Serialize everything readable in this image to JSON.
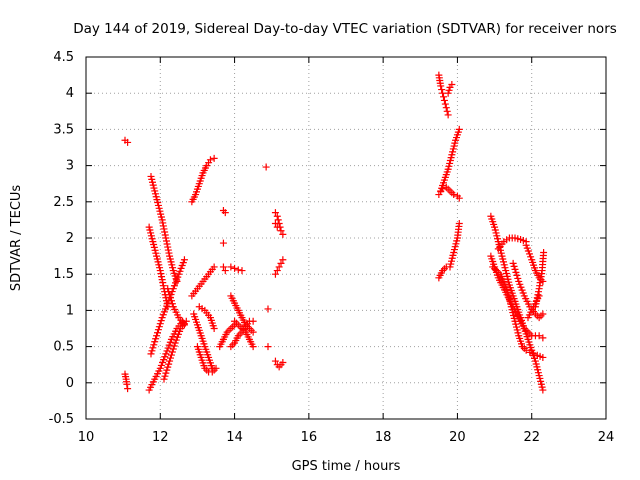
{
  "chart_data": {
    "type": "scatter",
    "title": "Day 144 of 2019, Sidereal Day-to-day VTEC variation (SDTVAR) for receiver nors",
    "xlabel": "GPS time / hours",
    "ylabel": "SDTVAR / TECUs",
    "xlim": [
      10,
      24
    ],
    "ylim": [
      -0.5,
      4.5
    ],
    "xticks": [
      10,
      12,
      14,
      16,
      18,
      20,
      22,
      24
    ],
    "yticks": [
      -0.5,
      0,
      0.5,
      1,
      1.5,
      2,
      2.5,
      3,
      3.5,
      4,
      4.5
    ],
    "grid": true,
    "marker": "+",
    "colors": {
      "series": "#ff0000",
      "grid": "#a0a0a0",
      "axis": "#000000"
    },
    "series": [
      {
        "name": "SDTVAR",
        "traces": [
          {
            "x": [
              11.05,
              11.12
            ],
            "y": [
              3.35,
              3.32
            ]
          },
          {
            "x": [
              11.05,
              11.08,
              11.1,
              11.12
            ],
            "y": [
              0.12,
              0.05,
              -0.02,
              -0.08
            ]
          },
          {
            "x": [
              11.75,
              11.85,
              11.95,
              12.05,
              12.15,
              12.25,
              12.35,
              12.45
            ],
            "y": [
              2.85,
              2.65,
              2.45,
              2.25,
              2.0,
              1.75,
              1.55,
              1.4
            ]
          },
          {
            "x": [
              11.7,
              11.8,
              11.9,
              12.0,
              12.1,
              12.2
            ],
            "y": [
              2.15,
              1.95,
              1.75,
              1.55,
              1.3,
              1.05
            ]
          },
          {
            "x": [
              11.75,
              11.9,
              12.05,
              12.2,
              12.35,
              12.5,
              12.65
            ],
            "y": [
              0.4,
              0.65,
              0.9,
              1.1,
              1.3,
              1.5,
              1.7
            ]
          },
          {
            "x": [
              11.7,
              11.85,
              12.0,
              12.15,
              12.3,
              12.45,
              12.6
            ],
            "y": [
              -0.1,
              0.05,
              0.2,
              0.4,
              0.6,
              0.75,
              0.85
            ]
          },
          {
            "x": [
              12.1,
              12.25,
              12.4,
              12.55,
              12.7
            ],
            "y": [
              0.05,
              0.3,
              0.55,
              0.75,
              0.85
            ]
          },
          {
            "x": [
              12.2,
              12.35,
              12.5,
              12.65
            ],
            "y": [
              1.3,
              1.05,
              0.9,
              0.8
            ]
          },
          {
            "x": [
              12.85,
              12.95,
              13.05,
              13.15,
              13.25,
              13.35,
              13.45
            ],
            "y": [
              2.5,
              2.6,
              2.75,
              2.9,
              3.0,
              3.08,
              3.1
            ]
          },
          {
            "x": [
              12.85,
              13.0,
              13.15,
              13.3,
              13.45
            ],
            "y": [
              1.2,
              1.3,
              1.4,
              1.5,
              1.6
            ]
          },
          {
            "x": [
              12.9,
              13.0,
              13.1,
              13.2,
              13.3,
              13.4
            ],
            "y": [
              0.95,
              0.8,
              0.65,
              0.5,
              0.35,
              0.2
            ]
          },
          {
            "x": [
              13.0,
              13.1,
              13.2,
              13.3,
              13.4,
              13.5
            ],
            "y": [
              0.5,
              0.35,
              0.2,
              0.15,
              0.15,
              0.2
            ]
          },
          {
            "x": [
              13.05,
              13.2,
              13.35,
              13.45
            ],
            "y": [
              1.05,
              1.0,
              0.9,
              0.75
            ]
          },
          {
            "x": [
              13.7,
              13.75
            ],
            "y": [
              2.38,
              2.35
            ]
          },
          {
            "x": [
              13.7
            ],
            "y": [
              1.93
            ]
          },
          {
            "x": [
              13.7,
              13.75
            ],
            "y": [
              1.6,
              1.55
            ]
          },
          {
            "x": [
              13.6,
              13.7,
              13.8,
              13.9,
              14.0
            ],
            "y": [
              0.5,
              0.6,
              0.7,
              0.75,
              0.8
            ]
          },
          {
            "x": [
              13.9,
              14.0,
              14.1,
              14.2
            ],
            "y": [
              1.6,
              1.58,
              1.56,
              1.55
            ]
          },
          {
            "x": [
              13.9,
              14.0,
              14.1,
              14.2,
              14.3,
              14.4,
              14.5
            ],
            "y": [
              1.2,
              1.1,
              1.0,
              0.9,
              0.8,
              0.75,
              0.7
            ]
          },
          {
            "x": [
              13.9,
              14.0,
              14.1,
              14.2,
              14.3,
              14.4,
              14.5
            ],
            "y": [
              0.5,
              0.55,
              0.65,
              0.7,
              0.78,
              0.85,
              0.85
            ]
          },
          {
            "x": [
              14.0,
              14.1,
              14.2,
              14.3,
              14.4,
              14.5
            ],
            "y": [
              0.85,
              0.8,
              0.75,
              0.7,
              0.6,
              0.5
            ]
          },
          {
            "x": [
              14.85
            ],
            "y": [
              2.98
            ]
          },
          {
            "x": [
              14.9
            ],
            "y": [
              1.02
            ]
          },
          {
            "x": [
              14.9
            ],
            "y": [
              0.5
            ]
          },
          {
            "x": [
              15.1,
              15.15,
              15.2,
              15.25,
              15.3
            ],
            "y": [
              2.35,
              2.3,
              2.2,
              2.1,
              2.05
            ]
          },
          {
            "x": [
              15.1,
              15.15
            ],
            "y": [
              2.2,
              2.15
            ]
          },
          {
            "x": [
              15.1,
              15.15,
              15.2,
              15.25,
              15.3
            ],
            "y": [
              1.5,
              1.55,
              1.6,
              1.65,
              1.7
            ]
          },
          {
            "x": [
              15.1,
              15.15,
              15.2,
              15.25,
              15.3
            ],
            "y": [
              0.3,
              0.25,
              0.22,
              0.25,
              0.28
            ]
          },
          {
            "x": [
              19.5,
              19.55,
              19.6,
              19.65,
              19.7,
              19.75
            ],
            "y": [
              4.25,
              4.1,
              4.0,
              3.9,
              3.8,
              3.7
            ]
          },
          {
            "x": [
              19.75,
              19.8,
              19.85
            ],
            "y": [
              4.0,
              4.08,
              4.12
            ]
          },
          {
            "x": [
              19.55,
              19.65,
              19.75,
              19.85,
              19.95,
              20.05
            ],
            "y": [
              2.65,
              2.8,
              2.95,
              3.15,
              3.35,
              3.5
            ]
          },
          {
            "x": [
              19.5,
              19.6,
              19.7,
              19.8,
              19.9,
              20.0,
              20.05
            ],
            "y": [
              2.6,
              2.68,
              2.7,
              2.65,
              2.6,
              2.58,
              2.55
            ]
          },
          {
            "x": [
              19.5,
              19.6,
              19.7,
              19.8,
              19.9,
              20.0,
              20.05
            ],
            "y": [
              1.45,
              1.55,
              1.6,
              1.6,
              1.8,
              2.0,
              2.2
            ]
          },
          {
            "x": [
              20.9,
              21.0,
              21.1,
              21.2,
              21.3,
              21.4,
              21.5,
              21.6,
              21.7,
              21.8,
              21.9,
              22.0,
              22.1,
              22.2,
              22.3
            ],
            "y": [
              2.3,
              2.15,
              1.95,
              1.75,
              1.55,
              1.35,
              1.2,
              1.05,
              0.9,
              0.75,
              0.6,
              0.45,
              0.3,
              0.1,
              -0.1
            ]
          },
          {
            "x": [
              20.9,
              21.0,
              21.1,
              21.2,
              21.3,
              21.4,
              21.5,
              21.6,
              21.7,
              21.8,
              21.9,
              22.0,
              22.1,
              22.2,
              22.3
            ],
            "y": [
              1.75,
              1.6,
              1.45,
              1.35,
              1.25,
              1.15,
              1.05,
              0.95,
              0.85,
              0.75,
              0.7,
              0.65,
              0.65,
              0.65,
              0.62
            ]
          },
          {
            "x": [
              20.95,
              21.05,
              21.15,
              21.25,
              21.35,
              21.45,
              21.55,
              21.65,
              21.75,
              21.85,
              21.95,
              22.05,
              22.15,
              22.3
            ],
            "y": [
              1.6,
              1.55,
              1.5,
              1.4,
              1.25,
              1.05,
              0.85,
              0.65,
              0.5,
              0.45,
              0.42,
              0.4,
              0.38,
              0.35
            ]
          },
          {
            "x": [
              21.1,
              21.25,
              21.4,
              21.55,
              21.7,
              21.85
            ],
            "y": [
              1.85,
              1.95,
              2.0,
              2.0,
              1.98,
              1.95
            ]
          },
          {
            "x": [
              21.5,
              21.65,
              21.8,
              21.95,
              22.1,
              22.2,
              22.3
            ],
            "y": [
              1.65,
              1.4,
              1.2,
              1.05,
              0.95,
              0.9,
              0.95
            ]
          },
          {
            "x": [
              21.85,
              22.0,
              22.1,
              22.2,
              22.3
            ],
            "y": [
              1.9,
              1.7,
              1.55,
              1.45,
              1.4
            ]
          },
          {
            "x": [
              22.1,
              22.2,
              22.28,
              22.32
            ],
            "y": [
              1.05,
              1.3,
              1.55,
              1.8
            ]
          },
          {
            "x": [
              21.9,
              22.05,
              22.2
            ],
            "y": [
              0.9,
              1.05,
              1.2
            ]
          }
        ]
      }
    ]
  }
}
